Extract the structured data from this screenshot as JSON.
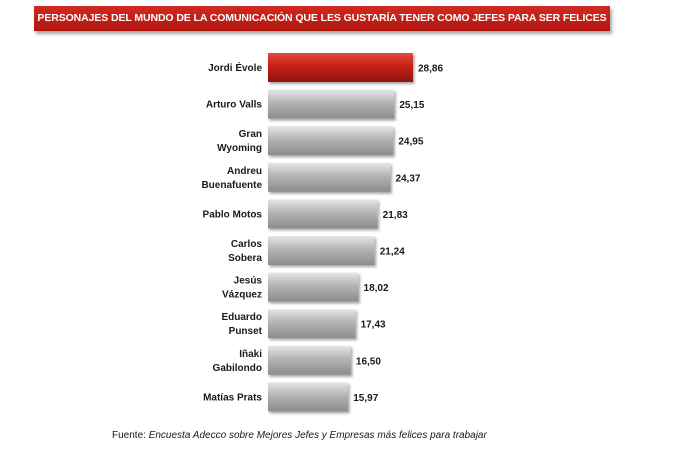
{
  "title": "PERSONAJES DEL MUNDO DE LA COMUNICACIÓN QUE LES GUSTARÍA TENER COMO JEFES PARA SER FELICES",
  "source_prefix": "Fuente: ",
  "source_text": "Encuesta Adecco sobre Mejores Jefes y Empresas más felices para trabajar",
  "colors": {
    "highlight": "#c8201a",
    "bar": "#a8a8a8"
  },
  "chart_data": {
    "type": "bar",
    "orientation": "horizontal",
    "title": "PERSONAJES DEL MUNDO DE LA COMUNICACIÓN QUE LES GUSTARÍA TENER COMO JEFES PARA SER FELICES",
    "categories": [
      [
        "Jordi Évole"
      ],
      [
        "Arturo Valls"
      ],
      [
        "Gran",
        "Wyoming"
      ],
      [
        "Andreu",
        "Buenafuente"
      ],
      [
        "Pablo Motos"
      ],
      [
        "Carlos",
        "Sobera"
      ],
      [
        "Jesús",
        "Vázquez"
      ],
      [
        "Eduardo",
        "Punset"
      ],
      [
        "Iñaki",
        "Gabilondo"
      ],
      [
        "Matías Prats"
      ]
    ],
    "values": [
      28.86,
      25.15,
      24.95,
      24.37,
      21.83,
      21.24,
      18.02,
      17.43,
      16.5,
      15.97
    ],
    "value_labels": [
      "28,86",
      "25,15",
      "24,95",
      "24,37",
      "21,83",
      "21,24",
      "18,02",
      "17,43",
      "16,50",
      "15,97"
    ],
    "highlight_index": 0,
    "xlim": [
      0,
      28.86
    ],
    "grid": false,
    "legend": "none"
  }
}
